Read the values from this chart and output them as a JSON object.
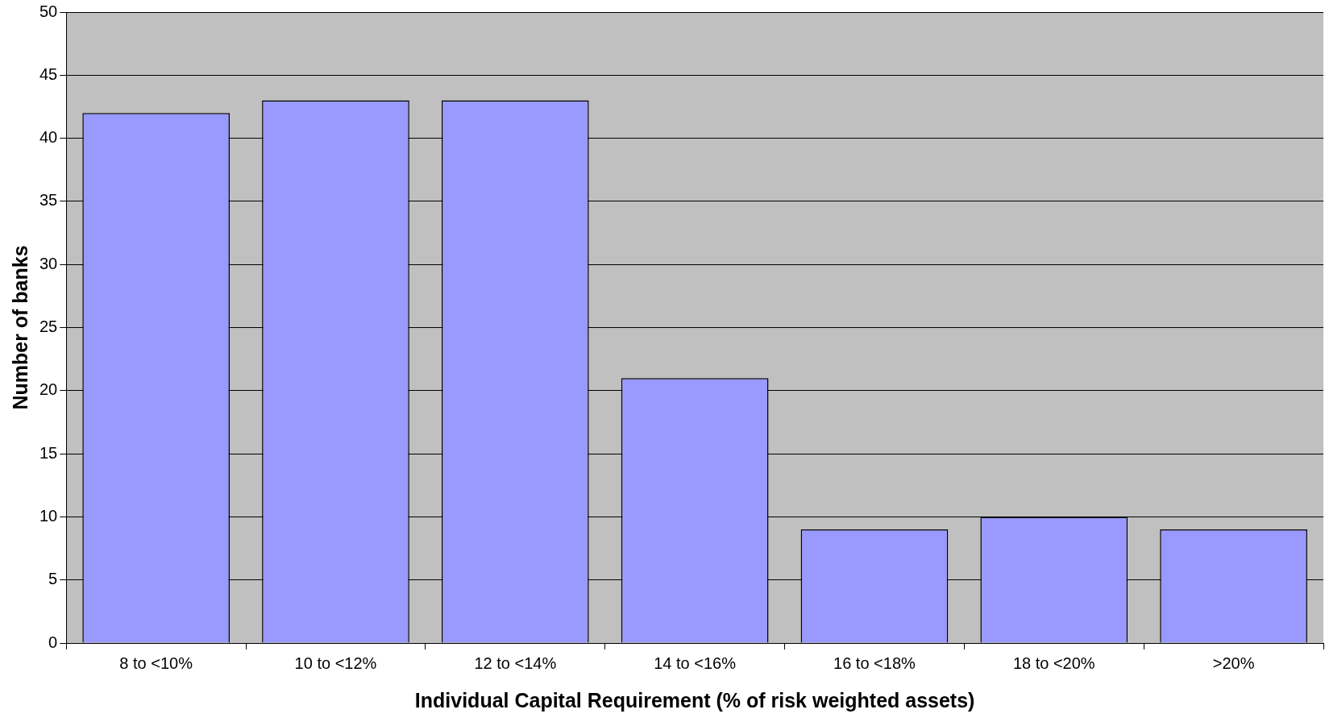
{
  "chart_data": {
    "type": "bar",
    "xlabel": "Individual Capital Requirement (% of risk weighted assets)",
    "ylabel": "Number of banks",
    "categories": [
      "8 to <10%",
      "10 to <12%",
      "12 to <14%",
      "14 to <16%",
      "16 to <18%",
      "18 to <20%",
      ">20%"
    ],
    "values": [
      42,
      43,
      43,
      21,
      9,
      10,
      9
    ],
    "color": "#9999ff",
    "ylim": [
      0,
      50
    ],
    "yticks": [
      0,
      5,
      10,
      15,
      20,
      25,
      30,
      35,
      40,
      45,
      50
    ],
    "grid": "y",
    "legend": false
  }
}
